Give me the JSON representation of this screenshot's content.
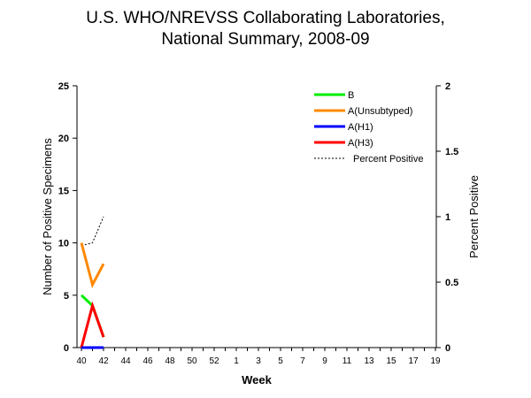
{
  "chart_data": {
    "type": "line",
    "title": [
      "U.S. WHO/NREVSS Collaborating Laboratories,",
      "National Summary, 2008-09"
    ],
    "xlabel": "Week",
    "ylabel": "Number of Positive Specimens",
    "y2label": "Percent Positive",
    "ylim": [
      0,
      25
    ],
    "y2lim": [
      0,
      2
    ],
    "yticks": [
      "0",
      "5",
      "10",
      "15",
      "20",
      "25"
    ],
    "y2ticks": [
      "0",
      "0.5",
      "1",
      "1.5",
      "2"
    ],
    "weeks": [
      40,
      41,
      42,
      43,
      44,
      45,
      46,
      47,
      48,
      49,
      50,
      51,
      52,
      1,
      2,
      3,
      4,
      5,
      6,
      7,
      8,
      9,
      10,
      11,
      12,
      13,
      14,
      15,
      16,
      17,
      18,
      19,
      20
    ],
    "xtick_labels": [
      "40",
      "42",
      "44",
      "46",
      "48",
      "50",
      "52",
      "1",
      "3",
      "5",
      "7",
      "9",
      "11",
      "13",
      "15",
      "17",
      "19"
    ],
    "series": [
      {
        "name": "B",
        "color": "#00ee00",
        "axis": "left",
        "values": [
          5,
          4,
          1
        ]
      },
      {
        "name": "A(Unsubtyped)",
        "color": "#ff8800",
        "axis": "left",
        "values": [
          10,
          6,
          8
        ]
      },
      {
        "name": "A(H1)",
        "color": "#0000ff",
        "axis": "left",
        "values": [
          0,
          0,
          0
        ]
      },
      {
        "name": "A(H3)",
        "color": "#ff0000",
        "axis": "left",
        "values": [
          0,
          4,
          1
        ]
      },
      {
        "name": "Percent Positive",
        "color": "#000000",
        "axis": "right",
        "dashed": true,
        "values": [
          0.78,
          0.8,
          1.0
        ]
      }
    ],
    "legend": "top-right"
  }
}
